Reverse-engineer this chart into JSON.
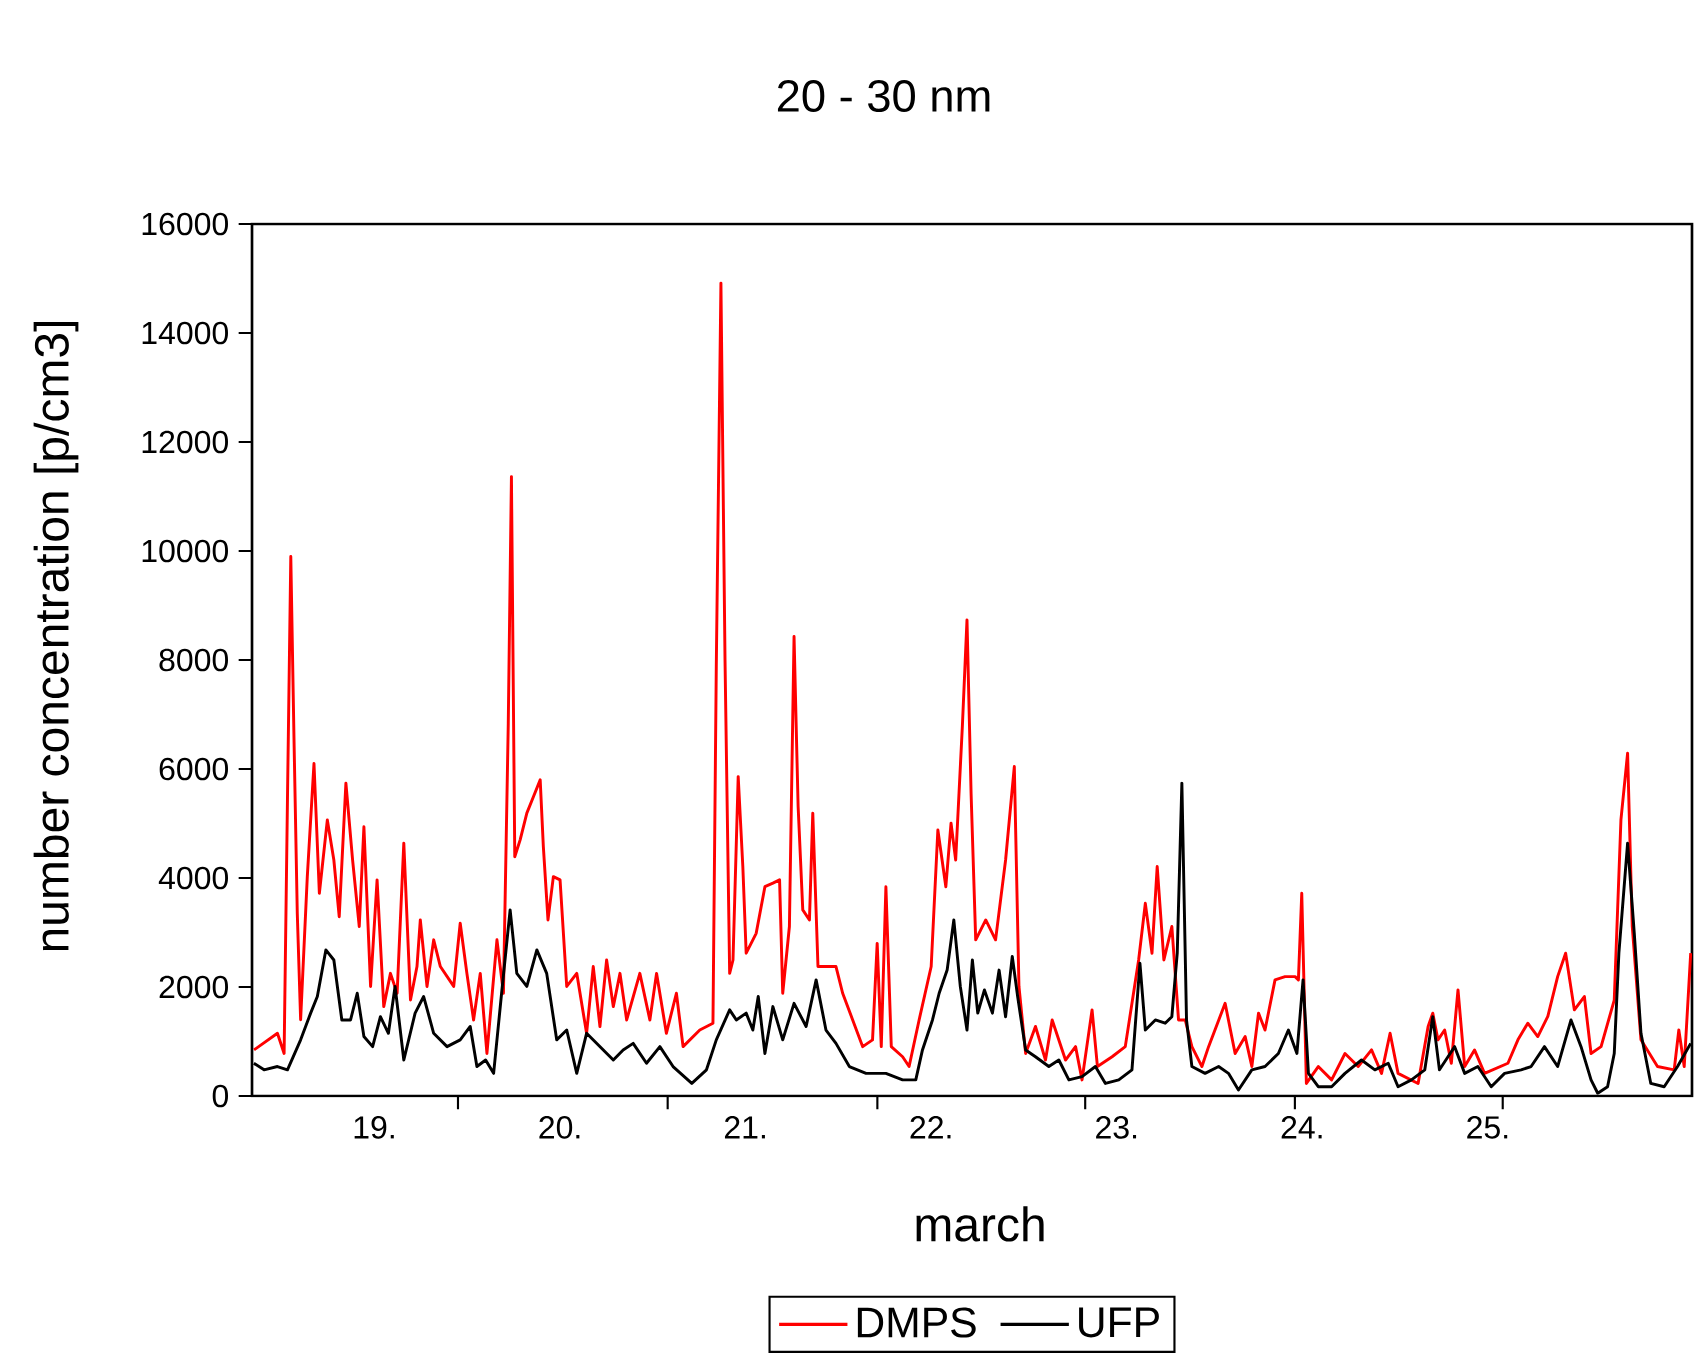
{
  "chart_data": {
    "type": "line",
    "title": "20 - 30 nm",
    "xlabel": "march",
    "ylabel": "number concentration [p/cm3]",
    "xlim": [
      18.84,
      26.6
    ],
    "ylim": [
      0,
      16000
    ],
    "xticks": [
      {
        "value": 19.5,
        "label": "19."
      },
      {
        "value": 20.5,
        "label": "20."
      },
      {
        "value": 21.5,
        "label": "21."
      },
      {
        "value": 22.5,
        "label": "22."
      },
      {
        "value": 23.5,
        "label": "23."
      },
      {
        "value": 24.5,
        "label": "24."
      },
      {
        "value": 25.5,
        "label": "25."
      },
      {
        "value": 19.95,
        "label": null
      },
      {
        "value": 21.08,
        "label": null
      },
      {
        "value": 22.21,
        "label": null
      },
      {
        "value": 23.33,
        "label": null
      },
      {
        "value": 24.46,
        "label": null
      },
      {
        "value": 25.58,
        "label": null
      }
    ],
    "yticks": [
      0,
      2000,
      4000,
      6000,
      8000,
      10000,
      12000,
      14000,
      16000
    ],
    "legend": "bottom",
    "grid": false,
    "series": [
      {
        "name": "DMPS",
        "color": "#ff0000",
        "x": [
          18.851,
          18.977,
          19.013,
          19.031,
          19.049,
          19.066,
          19.084,
          19.102,
          19.138,
          19.174,
          19.203,
          19.246,
          19.281,
          19.31,
          19.346,
          19.382,
          19.418,
          19.443,
          19.479,
          19.514,
          19.55,
          19.586,
          19.622,
          19.658,
          19.694,
          19.729,
          19.747,
          19.783,
          19.819,
          19.855,
          19.927,
          19.962,
          19.998,
          20.034,
          20.07,
          20.106,
          20.16,
          20.195,
          20.221,
          20.238,
          20.256,
          20.285,
          20.321,
          20.357,
          20.393,
          20.41,
          20.435,
          20.464,
          20.5,
          20.536,
          20.59,
          20.643,
          20.679,
          20.715,
          20.751,
          20.787,
          20.823,
          20.859,
          20.93,
          20.984,
          21.02,
          21.073,
          21.127,
          21.163,
          21.253,
          21.324,
          21.342,
          21.367,
          21.389,
          21.414,
          21.432,
          21.46,
          21.485,
          21.503,
          21.557,
          21.604,
          21.647,
          21.683,
          21.7,
          21.736,
          21.761,
          21.783,
          21.808,
          21.844,
          21.862,
          21.89,
          21.987,
          22.023,
          22.077,
          22.131,
          22.184,
          22.209,
          22.231,
          22.256,
          22.285,
          22.346,
          22.381,
          22.435,
          22.5,
          22.536,
          22.579,
          22.607,
          22.632,
          22.668,
          22.693,
          22.715,
          22.74,
          22.794,
          22.847,
          22.901,
          22.948,
          22.973,
          23.009,
          23.062,
          23.116,
          23.152,
          23.224,
          23.278,
          23.313,
          23.367,
          23.396,
          23.475,
          23.546,
          23.618,
          23.654,
          23.69,
          23.718,
          23.754,
          23.797,
          23.833,
          23.869,
          23.905,
          23.959,
          23.995,
          24.084,
          24.138,
          24.192,
          24.228,
          24.264,
          24.299,
          24.353,
          24.407,
          24.461,
          24.479,
          24.497,
          24.522,
          24.586,
          24.658,
          24.73,
          24.801,
          24.873,
          24.927,
          24.973,
          25.016,
          25.124,
          25.178,
          25.203,
          25.231,
          25.267,
          25.303,
          25.339,
          25.375,
          25.428,
          25.482,
          25.608,
          25.662,
          25.715,
          25.769,
          25.823,
          25.876,
          25.919,
          25.966,
          26.02,
          26.056,
          26.11,
          26.181,
          26.217,
          26.253,
          26.278,
          26.325,
          26.414,
          26.504,
          26.529,
          26.558,
          26.593
        ],
        "values": [
          845,
          1150,
          780,
          5430,
          9900,
          6600,
          3350,
          1400,
          4030,
          6100,
          3720,
          5065,
          4330,
          3290,
          5740,
          4330,
          3110,
          4940,
          2010,
          3965,
          1640,
          2250,
          1885,
          4640,
          1760,
          2375,
          3230,
          2010,
          2865,
          2375,
          2010,
          3170,
          2250,
          1395,
          2250,
          780,
          2865,
          1885,
          6840,
          11365,
          4390,
          4700,
          5190,
          5495,
          5800,
          4575,
          3230,
          4025,
          3965,
          2010,
          2250,
          1150,
          2375,
          1275,
          2495,
          1640,
          2250,
          1395,
          2250,
          1395,
          2250,
          1150,
          1885,
          905,
          1210,
          1335,
          7880,
          14915,
          8000,
          2250,
          2495,
          5860,
          4210,
          2620,
          2985,
          3840,
          3905,
          3965,
          1885,
          3110,
          8430,
          5310,
          3415,
          3230,
          5190,
          2375,
          2375,
          1885,
          1395,
          905,
          1030,
          2800,
          905,
          3840,
          905,
          720,
          540,
          1395,
          2375,
          4880,
          3840,
          5005,
          4330,
          6780,
          8735,
          5555,
          2865,
          3230,
          2865,
          4330,
          6045,
          2010,
          780,
          1275,
          660,
          1395,
          660,
          905,
          295,
          1580,
          540,
          720,
          905,
          2495,
          3535,
          2620,
          4210,
          2495,
          3110,
          1395,
          1395,
          905,
          540,
          905,
          1700,
          780,
          1090,
          540,
          1520,
          1210,
          2130,
          2190,
          2190,
          2130,
          3720,
          230,
          540,
          295,
          780,
          540,
          845,
          415,
          1150,
          415,
          230,
          1275,
          1520,
          1030,
          1210,
          600,
          1945,
          540,
          845,
          415,
          600,
          1030,
          1335,
          1090,
          1460,
          2190,
          2620,
          1580,
          1825,
          780,
          905,
          1760,
          5065,
          6290,
          3110,
          1030,
          540,
          480,
          1210,
          540,
          2620
        ]
      },
      {
        "name": "UFP",
        "color": "#000000",
        "x": [
          18.85,
          18.905,
          18.977,
          19.031,
          19.102,
          19.156,
          19.192,
          19.238,
          19.281,
          19.324,
          19.371,
          19.407,
          19.443,
          19.49,
          19.532,
          19.575,
          19.611,
          19.658,
          19.719,
          19.765,
          19.819,
          19.891,
          19.962,
          20.016,
          20.052,
          20.099,
          20.142,
          20.185,
          20.231,
          20.267,
          20.321,
          20.375,
          20.428,
          20.482,
          20.536,
          20.59,
          20.643,
          20.715,
          20.787,
          20.84,
          20.894,
          20.966,
          21.038,
          21.109,
          21.21,
          21.289,
          21.342,
          21.414,
          21.45,
          21.503,
          21.539,
          21.568,
          21.604,
          21.647,
          21.7,
          21.761,
          21.826,
          21.88,
          21.933,
          21.987,
          22.059,
          22.149,
          22.256,
          22.346,
          22.417,
          22.453,
          22.507,
          22.543,
          22.586,
          22.622,
          22.657,
          22.693,
          22.722,
          22.751,
          22.787,
          22.83,
          22.866,
          22.901,
          22.937,
          22.966,
          23.009,
          23.062,
          23.134,
          23.188,
          23.242,
          23.313,
          23.385,
          23.439,
          23.511,
          23.582,
          23.625,
          23.654,
          23.708,
          23.761,
          23.797,
          23.826,
          23.851,
          23.876,
          23.905,
          23.976,
          24.049,
          24.102,
          24.156,
          24.228,
          24.299,
          24.371,
          24.425,
          24.471,
          24.504,
          24.533,
          24.586,
          24.658,
          24.73,
          24.819,
          24.891,
          24.963,
          25.016,
          25.088,
          25.16,
          25.203,
          25.239,
          25.285,
          25.321,
          25.375,
          25.446,
          25.518,
          25.59,
          25.679,
          25.733,
          25.805,
          25.876,
          25.948,
          26.002,
          26.056,
          26.092,
          26.145,
          26.181,
          26.206,
          26.253,
          26.289,
          26.325,
          26.378,
          26.45,
          26.522,
          26.593
        ],
        "values": [
          600,
          480,
          540,
          480,
          1030,
          1520,
          1825,
          2680,
          2495,
          1395,
          1395,
          1885,
          1090,
          905,
          1455,
          1150,
          2010,
          660,
          1520,
          1825,
          1150,
          905,
          1030,
          1275,
          540,
          660,
          415,
          1885,
          3415,
          2250,
          2010,
          2680,
          2250,
          1030,
          1210,
          415,
          1150,
          905,
          660,
          845,
          965,
          600,
          905,
          540,
          230,
          480,
          1030,
          1580,
          1395,
          1520,
          1210,
          1825,
          780,
          1640,
          1030,
          1700,
          1275,
          2130,
          1210,
          965,
          540,
          415,
          415,
          295,
          295,
          845,
          1395,
          1885,
          2310,
          3230,
          2010,
          1210,
          2495,
          1520,
          1945,
          1520,
          2310,
          1455,
          2560,
          1825,
          845,
          720,
          540,
          660,
          295,
          355,
          540,
          230,
          295,
          480,
          2435,
          1210,
          1395,
          1335,
          1455,
          2620,
          5740,
          1395,
          540,
          415,
          540,
          415,
          110,
          480,
          540,
          780,
          1210,
          780,
          2130,
          415,
          170,
          170,
          415,
          660,
          480,
          600,
          170,
          295,
          480,
          1455,
          480,
          720,
          905,
          415,
          540,
          170,
          415,
          480,
          540,
          905,
          540,
          1395,
          905,
          295,
          50,
          170,
          780,
          2620,
          4640,
          2985,
          1150,
          230,
          170,
          540,
          965
        ]
      }
    ]
  }
}
